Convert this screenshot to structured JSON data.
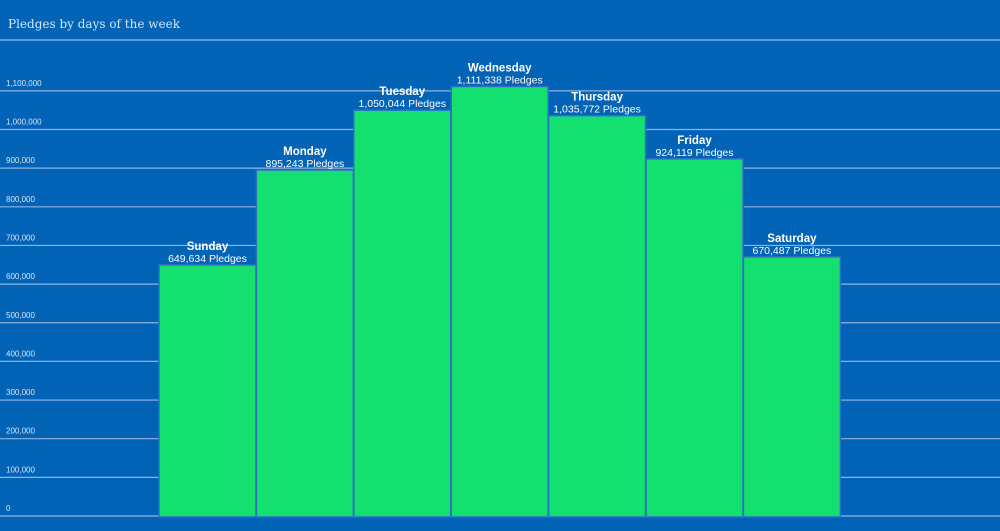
{
  "chart_data": {
    "type": "bar",
    "title": "Pledges by days of the week",
    "categories": [
      "Sunday",
      "Monday",
      "Tuesday",
      "Wednesday",
      "Thursday",
      "Friday",
      "Saturday"
    ],
    "values": [
      649634,
      895243,
      1050044,
      1111338,
      1035772,
      924119,
      670487
    ],
    "value_labels": [
      "649,634 Pledges",
      "895,243 Pledges",
      "1,050,044 Pledges",
      "1,111,338 Pledges",
      "1,035,772 Pledges",
      "924,119 Pledges",
      "670,487 Pledges"
    ],
    "y_ticks": [
      0,
      100000,
      200000,
      300000,
      400000,
      500000,
      600000,
      700000,
      800000,
      900000,
      1000000,
      1100000
    ],
    "y_tick_labels": [
      "0",
      "100,000",
      "200,000",
      "300,000",
      "400,000",
      "500,000",
      "600,000",
      "700,000",
      "800,000",
      "900,000",
      "1,000,000",
      "1,100,000"
    ],
    "ylim": [
      0,
      1100000
    ],
    "grid": true,
    "xlabel": "",
    "ylabel": "",
    "colors": {
      "background": "#0063b6",
      "bar": "#13e06f",
      "grid": "#8fb4e0",
      "text": "#ffffff"
    }
  }
}
